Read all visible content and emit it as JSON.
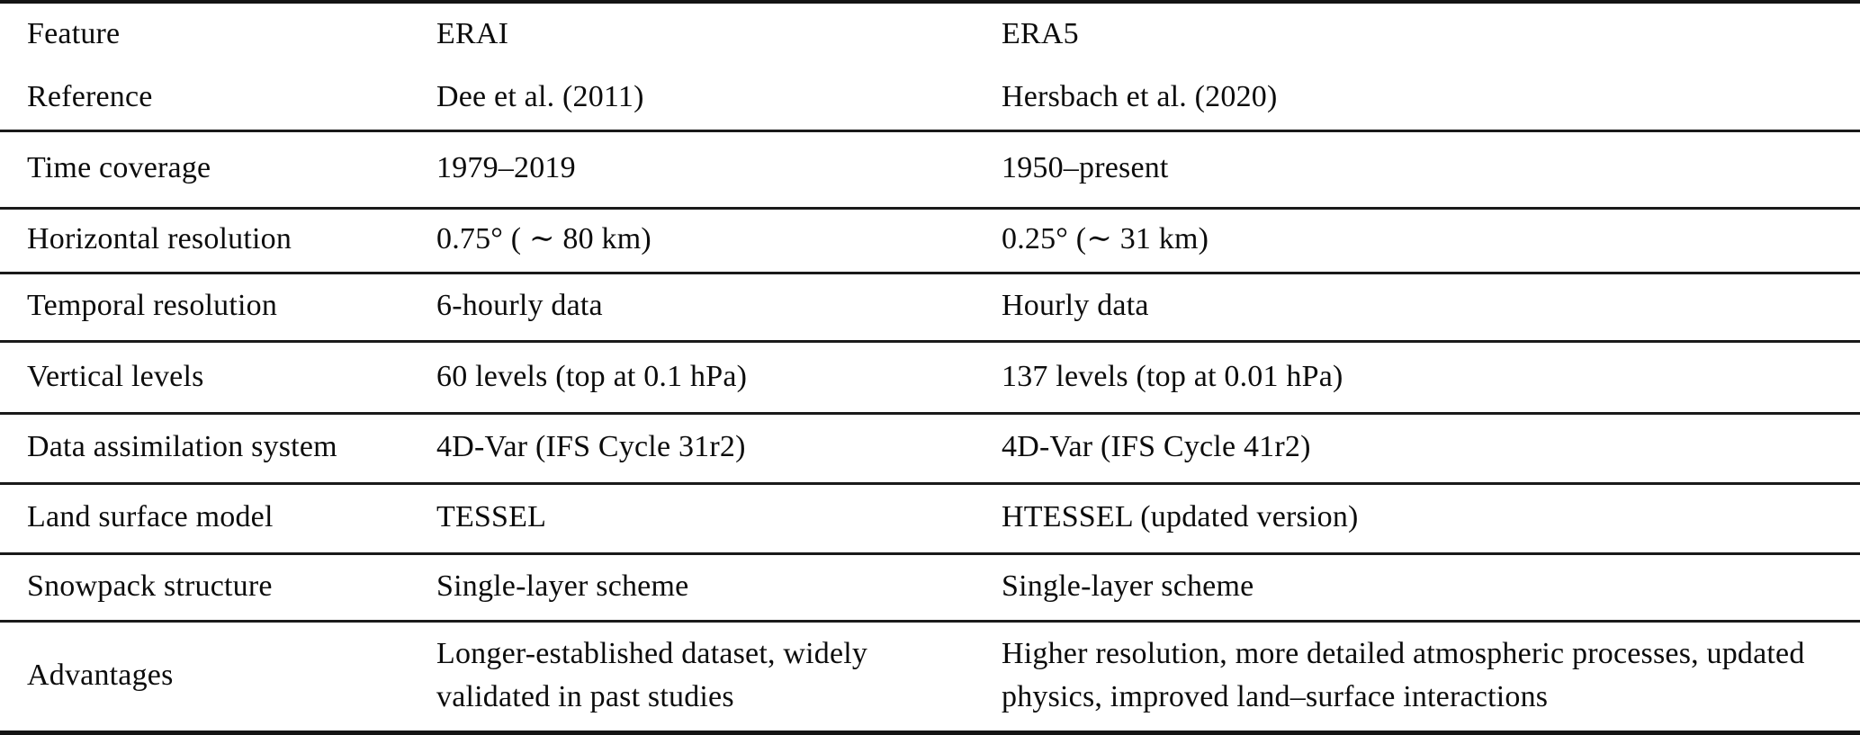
{
  "table": {
    "header": {
      "feature": "Feature",
      "erai": "ERAI",
      "era5": "ERA5"
    },
    "rows": [
      {
        "feature": "Reference",
        "erai": "Dee et al. (2011)",
        "era5": "Hersbach et al. (2020)"
      },
      {
        "feature": "Time coverage",
        "erai": "1979–2019",
        "era5": "1950–present"
      },
      {
        "feature": "Horizontal resolution",
        "erai": "0.75° ( ∼ 80 km)",
        "era5": "0.25° (∼ 31 km)"
      },
      {
        "feature": "Temporal resolution",
        "erai": "6-hourly data",
        "era5": "Hourly data"
      },
      {
        "feature": "Vertical levels",
        "erai": "60 levels (top at 0.1 hPa)",
        "era5": "137 levels (top at 0.01 hPa)"
      },
      {
        "feature": "Data assimilation system",
        "erai": "4D-Var (IFS Cycle 31r2)",
        "era5": "4D-Var (IFS Cycle 41r2)"
      },
      {
        "feature": "Land surface model",
        "erai": "TESSEL",
        "era5": "HTESSEL (updated version)"
      },
      {
        "feature": "Snowpack structure",
        "erai": "Single-layer scheme",
        "era5": "Single-layer scheme"
      },
      {
        "feature": "Advantages",
        "erai": "Longer-established dataset, widely validated in past studies",
        "era5": "Higher resolution, more detailed atmospheric processes, updated physics, improved land–surface interactions"
      }
    ],
    "colors": {
      "text": "#0c0c0c",
      "rule": "#141414",
      "background": "#ffffff"
    }
  }
}
